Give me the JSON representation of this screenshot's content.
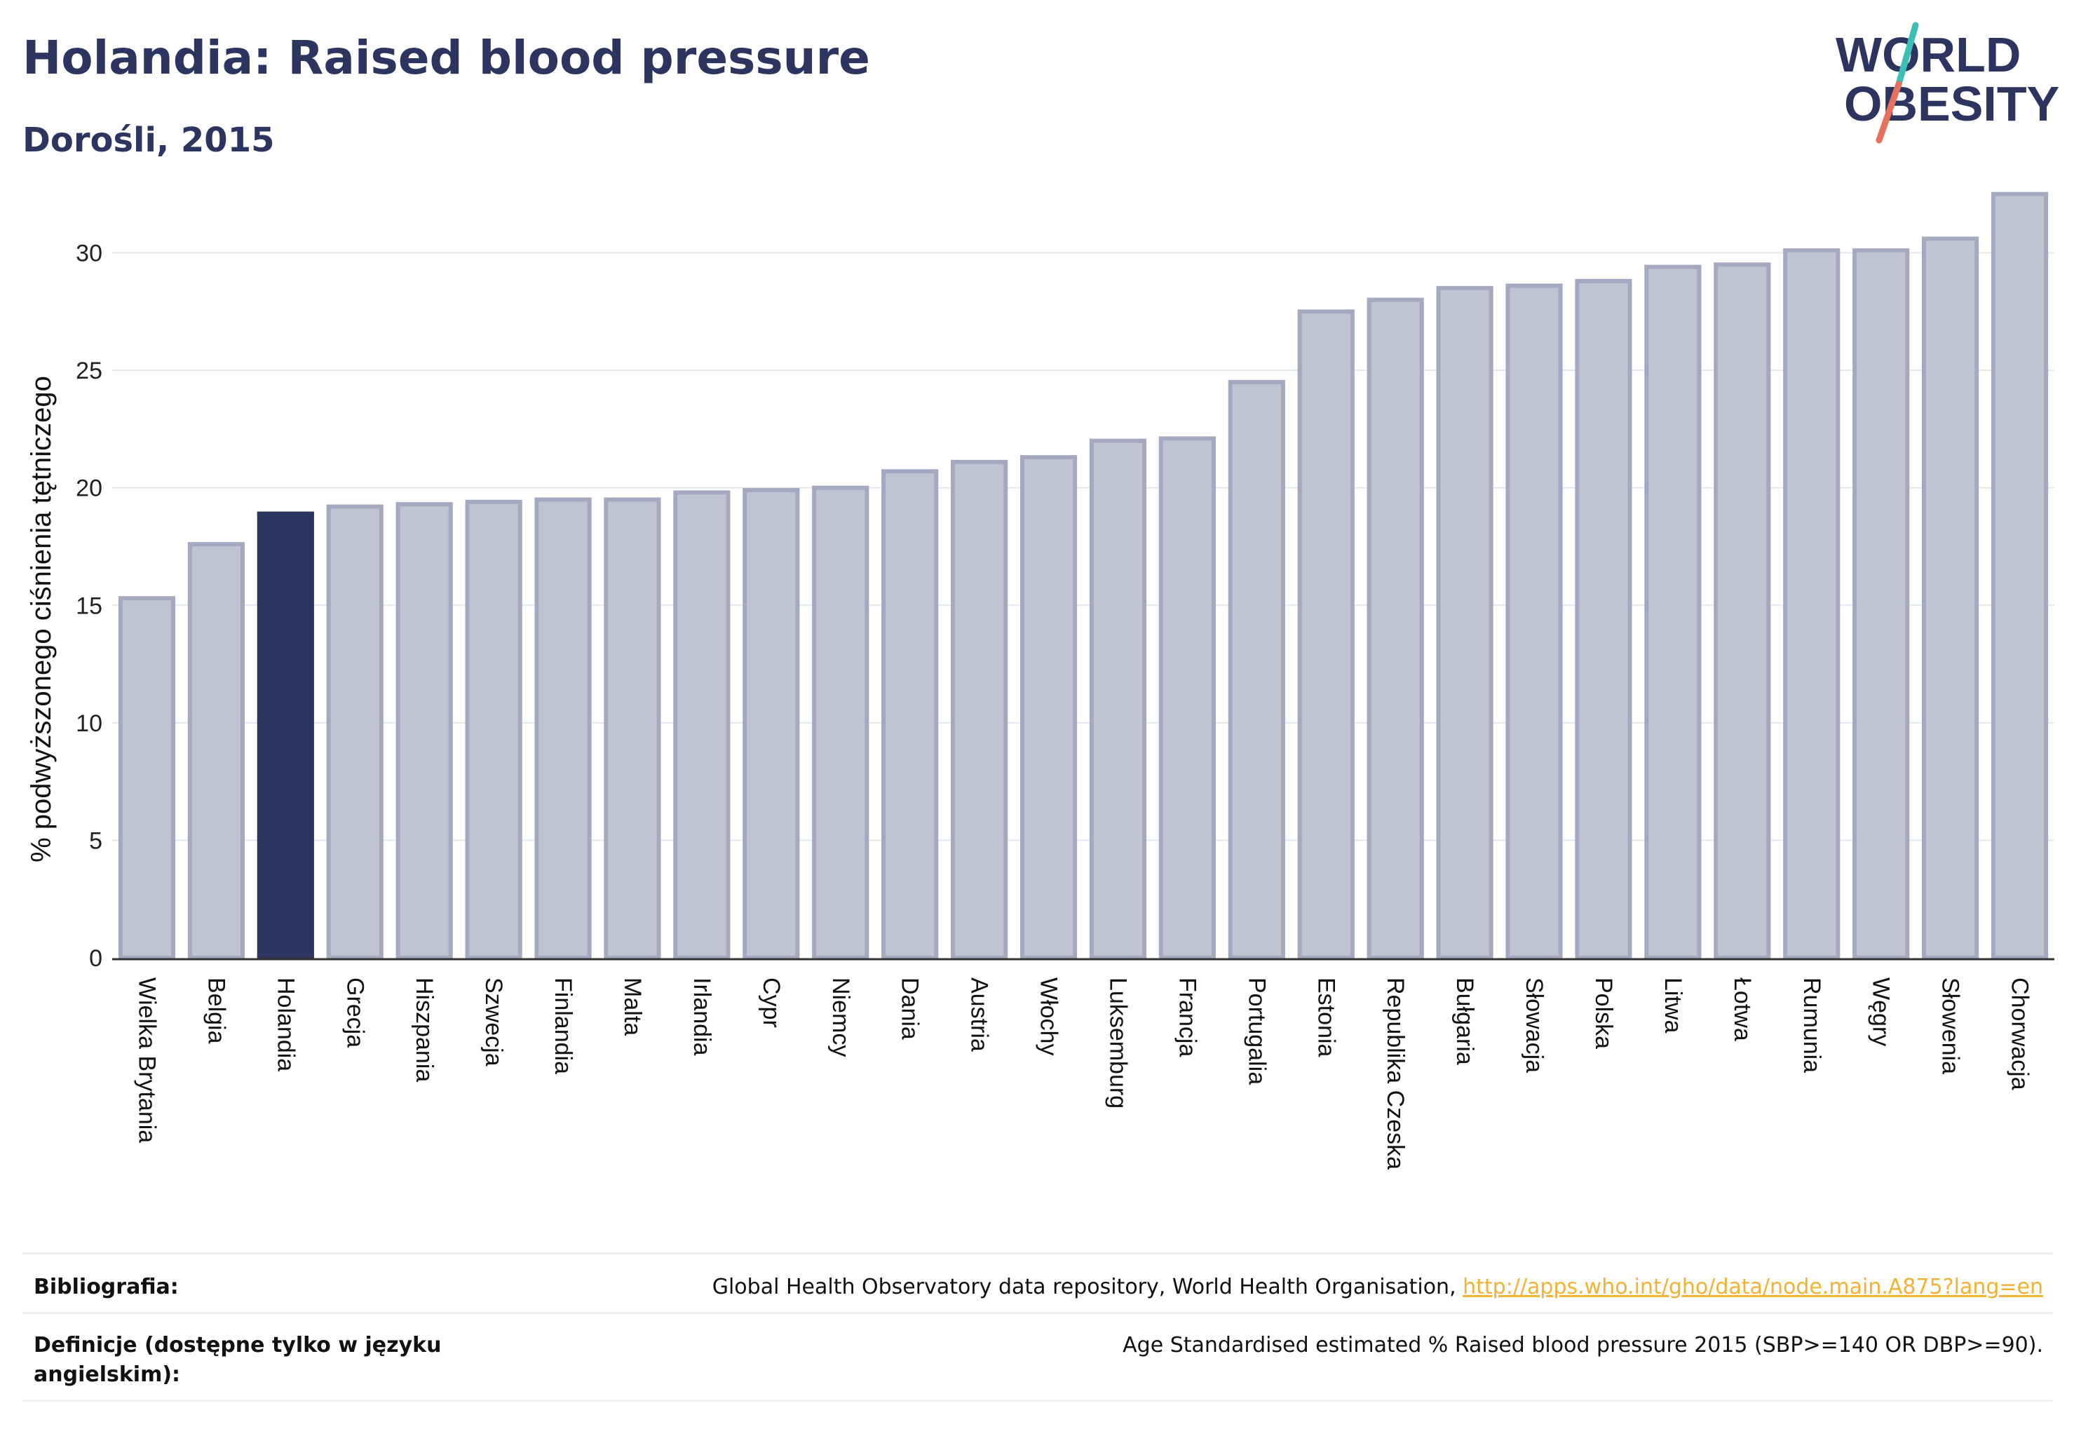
{
  "header": {
    "title": "Holandia: Raised blood pressure",
    "subtitle": "Dorośli, 2015"
  },
  "logo": {
    "line1": "WORLD",
    "line2": "OBESITY",
    "text_color": "#2b3560",
    "slash_colors": [
      "#3cbfb4",
      "#e8715e"
    ]
  },
  "chart_data": {
    "type": "bar",
    "title": "",
    "xlabel": "",
    "ylabel": "% podwyższonego ciśnienia tętniczego",
    "ylim": [
      0,
      33
    ],
    "yticks": [
      0,
      5,
      10,
      15,
      20,
      25,
      30
    ],
    "grid": true,
    "highlight": "Holandia",
    "colors": {
      "bar": "#c0c4d2",
      "bar_edge": "#a4a9c0",
      "highlight": "#2b3560"
    },
    "categories": [
      "Wielka Brytania",
      "Belgia",
      "Holandia",
      "Grecja",
      "Hiszpania",
      "Szwecja",
      "Finlandia",
      "Malta",
      "Irlandia",
      "Cypr",
      "Niemcy",
      "Dania",
      "Austria",
      "Włochy",
      "Luksemburg",
      "Francja",
      "Portugalia",
      "Estonia",
      "Republika Czeska",
      "Bułgaria",
      "Słowacja",
      "Polska",
      "Litwa",
      "Łotwa",
      "Rumunia",
      "Węgry",
      "Słowenia",
      "Chorwacja"
    ],
    "values": [
      15.3,
      17.6,
      18.9,
      19.2,
      19.3,
      19.4,
      19.5,
      19.5,
      19.8,
      19.9,
      20.0,
      20.7,
      21.1,
      21.3,
      22.0,
      22.1,
      24.5,
      27.5,
      28.0,
      28.5,
      28.6,
      28.8,
      29.4,
      29.5,
      30.1,
      30.1,
      30.6,
      32.5
    ]
  },
  "footer": {
    "bibliography_label": "Bibliografia:",
    "bibliography_text": "Global Health Observatory data repository, World Health Organisation, ",
    "bibliography_link": "http://apps.who.int/gho/data/node.main.A875?lang=en",
    "definitions_label": "Definicje (dostępne tylko w języku angielskim):",
    "definitions_text": "Age Standardised estimated % Raised blood pressure 2015 (SBP>=140 OR DBP>=90)."
  }
}
